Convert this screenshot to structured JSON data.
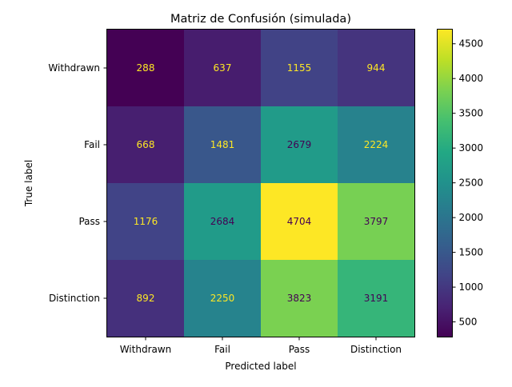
{
  "chart_data": {
    "type": "heatmap",
    "title": "Matriz de Confusión (simulada)",
    "xlabel": "Predicted label",
    "ylabel": "True label",
    "x_categories": [
      "Withdrawn",
      "Fail",
      "Pass",
      "Distinction"
    ],
    "y_categories": [
      "Withdrawn",
      "Fail",
      "Pass",
      "Distinction"
    ],
    "values": [
      [
        288,
        637,
        1155,
        944
      ],
      [
        668,
        1481,
        2679,
        2224
      ],
      [
        1176,
        2684,
        4704,
        3797
      ],
      [
        892,
        2250,
        3823,
        3191
      ]
    ],
    "colorbar": {
      "colormap": "viridis",
      "vmin": 288,
      "vmax": 4704,
      "ticks": [
        500,
        1000,
        1500,
        2000,
        2500,
        3000,
        3500,
        4000,
        4500
      ]
    },
    "label_colors": {
      "light": "#fde725",
      "dark": "#440154"
    }
  }
}
